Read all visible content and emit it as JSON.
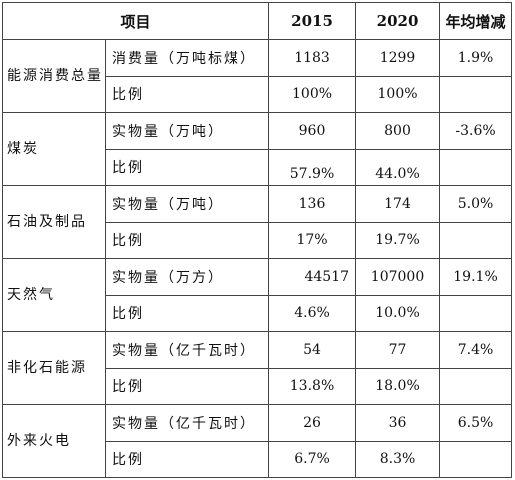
{
  "header": {
    "item": "项目",
    "y2015": "2015",
    "y2020": "2020",
    "avg_change": "年均增减"
  },
  "groups": [
    {
      "category": "能源消费总量",
      "rows": [
        {
          "item": "消费量（万吨标煤）",
          "v2015": "1183",
          "v2020": "1299",
          "change": "1.9%"
        },
        {
          "item": "比例",
          "v2015": "100%",
          "v2020": "100%",
          "change": ""
        }
      ]
    },
    {
      "category": "煤炭",
      "rows": [
        {
          "item": "实物量（万吨）",
          "v2015": "960",
          "v2020": "800",
          "change": "-3.6%"
        },
        {
          "item": "比例",
          "v2015": "57.9%",
          "v2020": "44.0%",
          "change": ""
        }
      ]
    },
    {
      "category": "石油及制品",
      "rows": [
        {
          "item": "实物量（万吨）",
          "v2015": "136",
          "v2020": "174",
          "change": "5.0%"
        },
        {
          "item": "比例",
          "v2015": "17%",
          "v2020": "19.7%",
          "change": ""
        }
      ]
    },
    {
      "category": "天然气",
      "rows": [
        {
          "item": "实物量（万方）",
          "v2015": "44517",
          "v2020": "107000",
          "change": "19.1%"
        },
        {
          "item": "比例",
          "v2015": "4.6%",
          "v2020": "10.0%",
          "change": ""
        }
      ]
    },
    {
      "category": "非化石能源",
      "rows": [
        {
          "item": "实物量（亿千瓦时）",
          "v2015": "54",
          "v2020": "77",
          "change": "7.4%"
        },
        {
          "item": "比例",
          "v2015": "13.8%",
          "v2020": "18.0%",
          "change": ""
        }
      ]
    },
    {
      "category": "外来火电",
      "rows": [
        {
          "item": "实物量（亿千瓦时）",
          "v2015": "26",
          "v2020": "36",
          "change": "6.5%"
        },
        {
          "item": "比例",
          "v2015": "6.7%",
          "v2020": "8.3%",
          "change": ""
        }
      ]
    }
  ]
}
